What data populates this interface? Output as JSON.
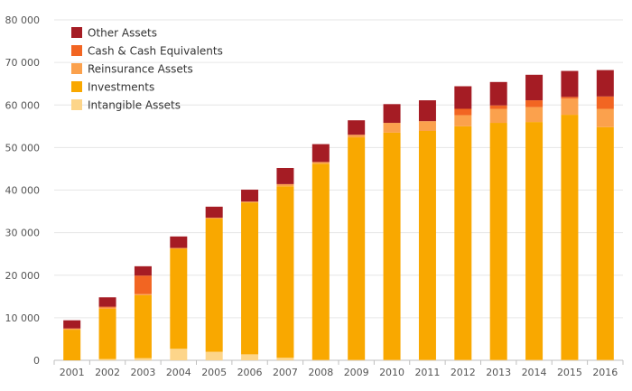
{
  "chart_data": {
    "type": "bar",
    "stacked": true,
    "categories": [
      "2001",
      "2002",
      "2003",
      "2004",
      "2005",
      "2006",
      "2007",
      "2008",
      "2009",
      "2010",
      "2011",
      "2012",
      "2013",
      "2014",
      "2015",
      "2016"
    ],
    "ylim": [
      0,
      80000
    ],
    "yticks": [
      0,
      10000,
      20000,
      30000,
      40000,
      50000,
      60000,
      70000,
      80000
    ],
    "ytick_labels": [
      "0",
      "10 000",
      "20 000",
      "30 000",
      "40 000",
      "50 000",
      "60 000",
      "70 000",
      "80 000"
    ],
    "grid": true,
    "legend_position": "top-left",
    "series": [
      {
        "name": "Intangible Assets",
        "color": "#fdd58a",
        "values": [
          0,
          300,
          500,
          2700,
          2000,
          1400,
          600,
          100,
          100,
          100,
          100,
          100,
          100,
          100,
          100,
          100
        ]
      },
      {
        "name": "Investments",
        "color": "#f9a800",
        "values": [
          7200,
          11800,
          14800,
          23500,
          31300,
          35700,
          40300,
          46100,
          52300,
          53400,
          53800,
          54900,
          55700,
          55900,
          57600,
          54700
        ]
      },
      {
        "name": "Reinsurance Assets",
        "color": "#fba14d",
        "values": [
          200,
          300,
          300,
          200,
          200,
          200,
          500,
          400,
          600,
          2300,
          2300,
          2600,
          3300,
          3500,
          3800,
          4300
        ]
      },
      {
        "name": "Cash & Cash Equivalents",
        "color": "#f26522",
        "values": [
          100,
          200,
          4300,
          0,
          0,
          0,
          0,
          0,
          0,
          0,
          0,
          1500,
          800,
          1600,
          400,
          2900
        ]
      },
      {
        "name": "Other Assets",
        "color": "#a51c24",
        "values": [
          1900,
          2200,
          2200,
          2700,
          2600,
          2800,
          3800,
          4200,
          3400,
          4400,
          4900,
          5300,
          5500,
          6000,
          6100,
          6200
        ]
      }
    ]
  }
}
